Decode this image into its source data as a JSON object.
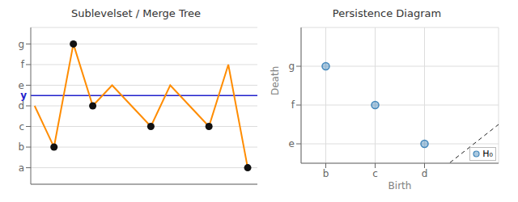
{
  "chart_data": [
    {
      "type": "line",
      "title": "Sublevelset / Merge Tree",
      "xlim": [
        -0.2,
        11.5
      ],
      "xticks": [],
      "ylim": [
        -0.8,
        6.8
      ],
      "yticks": [
        {
          "value": 0,
          "label": "a"
        },
        {
          "value": 1,
          "label": "b"
        },
        {
          "value": 2,
          "label": "c"
        },
        {
          "value": 3,
          "label": "d"
        },
        {
          "value": 4,
          "label": "e"
        },
        {
          "value": 5,
          "label": "f"
        },
        {
          "value": 6,
          "label": "g"
        }
      ],
      "grid": true,
      "tick_labels": "y",
      "series": [
        {
          "type": "line",
          "color": "#ff8c00",
          "x": [
            0,
            1,
            2,
            3,
            4,
            5,
            6,
            7,
            8,
            9,
            10,
            11
          ],
          "values": [
            3,
            1,
            6,
            3,
            4,
            3,
            2,
            4,
            3,
            2,
            5,
            0
          ]
        },
        {
          "type": "scatter",
          "color": "#111111",
          "x": [
            1,
            2,
            3,
            6,
            9,
            11
          ],
          "values": [
            1,
            6,
            3,
            2,
            2,
            0
          ]
        }
      ],
      "annotations": [
        {
          "text": "y",
          "y": 3.5,
          "color": "#2020cc"
        }
      ]
    },
    {
      "type": "scatter",
      "title": "Persistence Diagram",
      "xlabel": "Birth",
      "ylabel": "Death",
      "xlim": [
        0.5,
        4.5
      ],
      "xticks": [
        {
          "value": 1,
          "label": "b"
        },
        {
          "value": 2,
          "label": "c"
        },
        {
          "value": 3,
          "label": "d"
        }
      ],
      "ylim": [
        3.5,
        7.0
      ],
      "yticks": [
        {
          "value": 4,
          "label": "e"
        },
        {
          "value": 5,
          "label": "f"
        },
        {
          "value": 6,
          "label": "g"
        }
      ],
      "grid": true,
      "legend": "lower right",
      "series": [
        {
          "name": "H₀",
          "color": "#4488bb",
          "x": [
            1,
            2,
            3
          ],
          "values": [
            6,
            5,
            4
          ]
        }
      ]
    }
  ]
}
